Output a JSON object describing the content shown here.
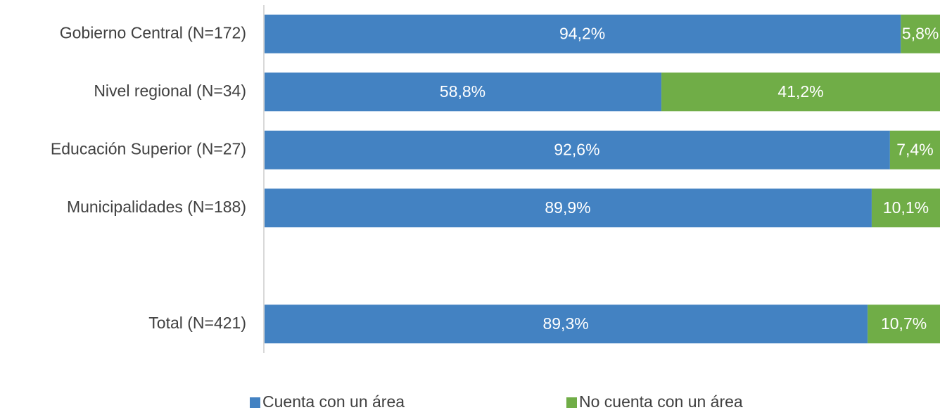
{
  "chart_data": {
    "type": "stacked-bar-horizontal",
    "categories": [
      "Gobierno Central (N=172)",
      "Nivel regional (N=34)",
      "Educación Superior (N=27)",
      "Municipalidades (N=188)",
      null,
      "Total (N=421)"
    ],
    "xlim": [
      0,
      100
    ],
    "series": [
      {
        "name": "Cuenta con un área",
        "color": "#4382c2",
        "values": [
          94.2,
          58.8,
          92.6,
          89.9,
          null,
          89.3
        ],
        "value_labels": [
          "94,2%",
          "58,8%",
          "92,6%",
          "89,9%",
          null,
          "89,3%"
        ]
      },
      {
        "name": "No cuenta con un área",
        "color": "#70ad47",
        "values": [
          5.8,
          41.2,
          7.4,
          10.1,
          null,
          10.7
        ],
        "value_labels": [
          "5,8%",
          "41,2%",
          "7,4%",
          "10,1%",
          null,
          "10,7%"
        ]
      }
    ],
    "legend": "bottom"
  }
}
